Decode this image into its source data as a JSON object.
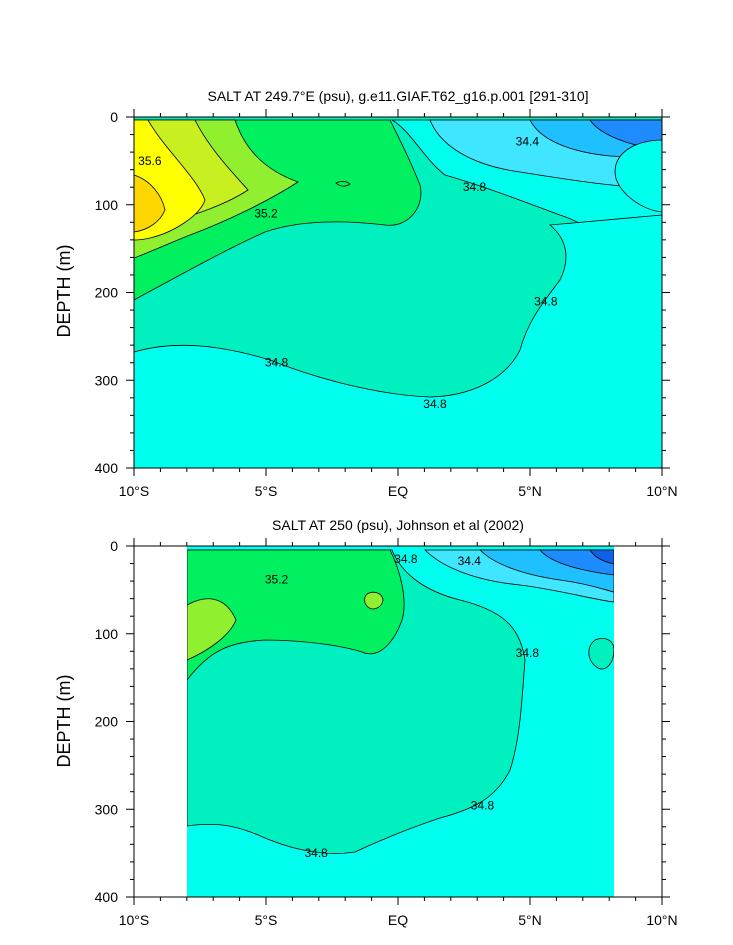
{
  "chart_data": [
    {
      "type": "contour",
      "title": "SALT AT 249.7°E (psu), g.e11.GIAF.T62_g16.p.001 [291-310]",
      "ylabel": "DEPTH (m)",
      "xlabel": "",
      "x_ticks": [
        "10°S",
        "5°S",
        "EQ",
        "5°N",
        "10°N"
      ],
      "x_range_deg": [
        -10,
        10
      ],
      "y_ticks": [
        "0",
        "100",
        "200",
        "300",
        "400"
      ],
      "y_range_m": [
        0,
        400
      ],
      "y_reversed": true,
      "contour_interval": 0.2,
      "data_extent_x_deg": [
        -10,
        10
      ],
      "colors": {
        "34.0": "#1e8cff",
        "34.2": "#1ec0ff",
        "34.4": "#40e6ff",
        "34.6": "#00ffee",
        "34.8": "#00f0c0",
        "35.0": "#00f060",
        "35.2": "#90f030",
        "35.4": "#ffff00",
        "35.6": "#ffd700"
      },
      "contour_labels": [
        {
          "text": "35.6",
          "x": -9.4,
          "y": 50
        },
        {
          "text": "35.2",
          "x": -5.0,
          "y": 110
        },
        {
          "text": "34.4",
          "x": 4.9,
          "y": 28
        },
        {
          "text": "34.8",
          "x": 2.9,
          "y": 80
        },
        {
          "text": "34.8",
          "x": 5.6,
          "y": 210
        },
        {
          "text": "34.8",
          "x": -4.6,
          "y": 280
        },
        {
          "text": "34.8",
          "x": 1.4,
          "y": 327
        }
      ]
    },
    {
      "type": "contour",
      "title": "SALT AT 250 (psu), Johnson et al (2002)",
      "ylabel": "DEPTH (m)",
      "xlabel": "",
      "x_ticks": [
        "10°S",
        "5°S",
        "EQ",
        "5°N",
        "10°N"
      ],
      "x_range_deg": [
        -10,
        10
      ],
      "y_ticks": [
        "0",
        "100",
        "200",
        "300",
        "400"
      ],
      "y_range_m": [
        0,
        400
      ],
      "y_reversed": true,
      "contour_interval": 0.2,
      "data_extent_x_deg": [
        -8,
        8
      ],
      "colors": {
        "34.0": "#1e8cff",
        "34.2": "#1ec0ff",
        "34.4": "#40e6ff",
        "34.6": "#00ffee",
        "34.8": "#00f0c0",
        "35.0": "#00f060",
        "35.2": "#90f030",
        "35.4": "#ffff00",
        "35.6": "#ffd700"
      },
      "contour_labels": [
        {
          "text": "35.2",
          "x": -4.6,
          "y": 38
        },
        {
          "text": "34.8",
          "x": 0.3,
          "y": 15
        },
        {
          "text": "34.4",
          "x": 2.7,
          "y": 17
        },
        {
          "text": "34.8",
          "x": 4.9,
          "y": 122
        },
        {
          "text": "34.8",
          "x": 3.2,
          "y": 296
        },
        {
          "text": "34.8",
          "x": -3.1,
          "y": 350
        }
      ]
    }
  ]
}
